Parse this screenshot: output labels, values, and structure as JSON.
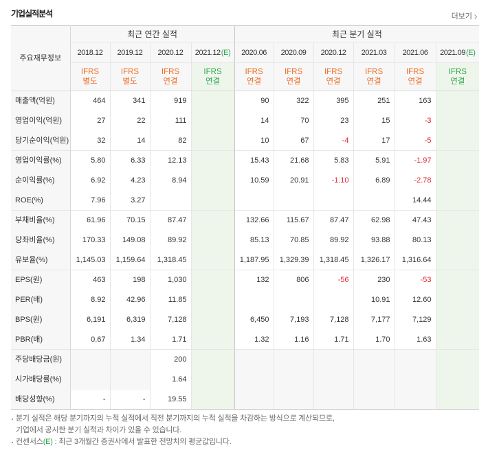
{
  "header": {
    "title": "기업실적분석",
    "more_label": "더보기",
    "more_icon": "chevron-right-icon"
  },
  "table": {
    "row_header_label": "주요재무정보",
    "column_groups": [
      {
        "label": "최근 연간 실적",
        "columns": [
          {
            "period": "2018.12",
            "estimate_mark": "",
            "basis": "IFRS",
            "scope": "별도"
          },
          {
            "period": "2019.12",
            "estimate_mark": "",
            "basis": "IFRS",
            "scope": "별도"
          },
          {
            "period": "2020.12",
            "estimate_mark": "",
            "basis": "IFRS",
            "scope": "연결"
          },
          {
            "period": "2021.12",
            "estimate_mark": "(E)",
            "basis": "IFRS",
            "scope": "연결"
          }
        ]
      },
      {
        "label": "최근 분기 실적",
        "columns": [
          {
            "period": "2020.06",
            "estimate_mark": "",
            "basis": "IFRS",
            "scope": "연결"
          },
          {
            "period": "2020.09",
            "estimate_mark": "",
            "basis": "IFRS",
            "scope": "연결"
          },
          {
            "period": "2020.12",
            "estimate_mark": "",
            "basis": "IFRS",
            "scope": "연결"
          },
          {
            "period": "2021.03",
            "estimate_mark": "",
            "basis": "IFRS",
            "scope": "연결"
          },
          {
            "period": "2021.06",
            "estimate_mark": "",
            "basis": "IFRS",
            "scope": "연결"
          },
          {
            "period": "2021.09",
            "estimate_mark": "(E)",
            "basis": "IFRS",
            "scope": "연결"
          }
        ]
      }
    ],
    "row_groups": [
      {
        "rows": [
          {
            "label": "매출액(억원)",
            "values": [
              "464",
              "341",
              "919",
              "",
              "90",
              "322",
              "395",
              "251",
              "163",
              ""
            ]
          },
          {
            "label": "영업이익(억원)",
            "values": [
              "27",
              "22",
              "111",
              "",
              "14",
              "70",
              "23",
              "15",
              "-3",
              ""
            ]
          },
          {
            "label": "당기순이익(억원)",
            "values": [
              "32",
              "14",
              "82",
              "",
              "10",
              "67",
              "-4",
              "17",
              "-5",
              ""
            ]
          }
        ]
      },
      {
        "rows": [
          {
            "label": "영업이익률(%)",
            "values": [
              "5.80",
              "6.33",
              "12.13",
              "",
              "15.43",
              "21.68",
              "5.83",
              "5.91",
              "-1.97",
              ""
            ]
          },
          {
            "label": "순이익률(%)",
            "values": [
              "6.92",
              "4.23",
              "8.94",
              "",
              "10.59",
              "20.91",
              "-1.10",
              "6.89",
              "-2.78",
              ""
            ]
          },
          {
            "label": "ROE(%)",
            "values": [
              "7.96",
              "3.27",
              "",
              "",
              "",
              "",
              "",
              "",
              "14.44",
              ""
            ]
          }
        ]
      },
      {
        "rows": [
          {
            "label": "부채비율(%)",
            "values": [
              "61.96",
              "70.15",
              "87.47",
              "",
              "132.66",
              "115.67",
              "87.47",
              "62.98",
              "47.43",
              ""
            ]
          },
          {
            "label": "당좌비율(%)",
            "values": [
              "170.33",
              "149.08",
              "89.92",
              "",
              "85.13",
              "70.85",
              "89.92",
              "93.88",
              "80.13",
              ""
            ]
          },
          {
            "label": "유보율(%)",
            "values": [
              "1,145.03",
              "1,159.64",
              "1,318.45",
              "",
              "1,187.95",
              "1,329.39",
              "1,318.45",
              "1,326.17",
              "1,316.64",
              ""
            ]
          }
        ]
      },
      {
        "rows": [
          {
            "label": "EPS(원)",
            "values": [
              "463",
              "198",
              "1,030",
              "",
              "132",
              "806",
              "-56",
              "230",
              "-53",
              ""
            ]
          },
          {
            "label": "PER(배)",
            "values": [
              "8.92",
              "42.96",
              "11.85",
              "",
              "",
              "",
              "",
              "10.91",
              "12.60",
              ""
            ]
          },
          {
            "label": "BPS(원)",
            "values": [
              "6,191",
              "6,319",
              "7,128",
              "",
              "6,450",
              "7,193",
              "7,128",
              "7,177",
              "7,129",
              ""
            ]
          },
          {
            "label": "PBR(배)",
            "values": [
              "0.67",
              "1.34",
              "1.71",
              "",
              "1.32",
              "1.16",
              "1.71",
              "1.70",
              "1.63",
              ""
            ]
          }
        ]
      },
      {
        "rows": [
          {
            "label": "주당배당금(원)",
            "values": [
              null,
              null,
              "200",
              "",
              null,
              null,
              null,
              null,
              null,
              ""
            ]
          },
          {
            "label": "시가배당률(%)",
            "values": [
              null,
              null,
              "1.64",
              "",
              null,
              null,
              null,
              null,
              null,
              ""
            ]
          },
          {
            "label": "배당성향(%)",
            "values": [
              "-",
              "-",
              "19.55",
              "",
              null,
              null,
              null,
              null,
              null,
              ""
            ]
          }
        ]
      }
    ]
  },
  "notes": {
    "quarterly": {
      "lines": [
        "분기 실적은 해당 분기까지의 누적 실적에서 직전 분기까지의 누적 실적을 차감하는 방식으로 계산되므로,",
        "기업에서 공시한 분기 실적과 차이가 있을 수 있습니다."
      ]
    },
    "consensus": {
      "term": "컨센서스",
      "estimate_mark": "(E)",
      "text": " : 최근 3개월간 증권사에서 발표한 전망치의 평균값입니다."
    }
  },
  "colors": {
    "basis_label": "#ef6c24",
    "estimate_mark": "#2ea44f",
    "estimate_column_bg": "#eef6ec",
    "negative_value": "#e0262f"
  }
}
